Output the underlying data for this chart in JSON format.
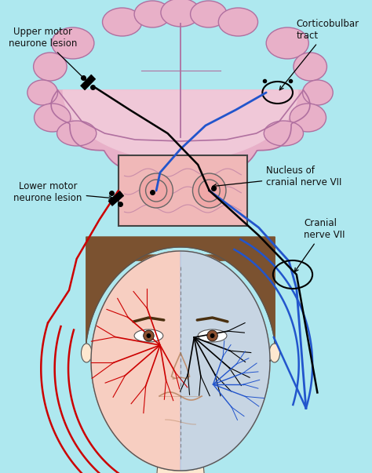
{
  "background_color": "#aee8ef",
  "brain_fill": "#e8b0c8",
  "brain_inner_fill": "#f0c8d8",
  "brain_outline": "#b070a0",
  "brainstem_box_fill": "#f0b8b8",
  "brainstem_box_outline": "#444444",
  "face_skin": "#f5c8a8",
  "face_skin_light": "#fde8d0",
  "face_outline": "#555555",
  "hair_color": "#7b5230",
  "red_nerve": "#cc0000",
  "blue_nerve": "#2255cc",
  "black_nerve": "#222222",
  "nucleus_fill": "#f0a8a8",
  "nucleus_outline": "#666666",
  "face_blue_region": "#aaccee",
  "face_red_region": "#f0b0b0",
  "text_color": "#111111",
  "labels": {
    "upper_motor": "Upper motor\nneurone lesion",
    "corticobulbar": "Corticobulbar\ntract",
    "lower_motor": "Lower motor\nneurone lesion",
    "nucleus": "Nucleus of\ncranial nerve VII",
    "cranial_nerve": "Cranial\nnerve VII"
  }
}
